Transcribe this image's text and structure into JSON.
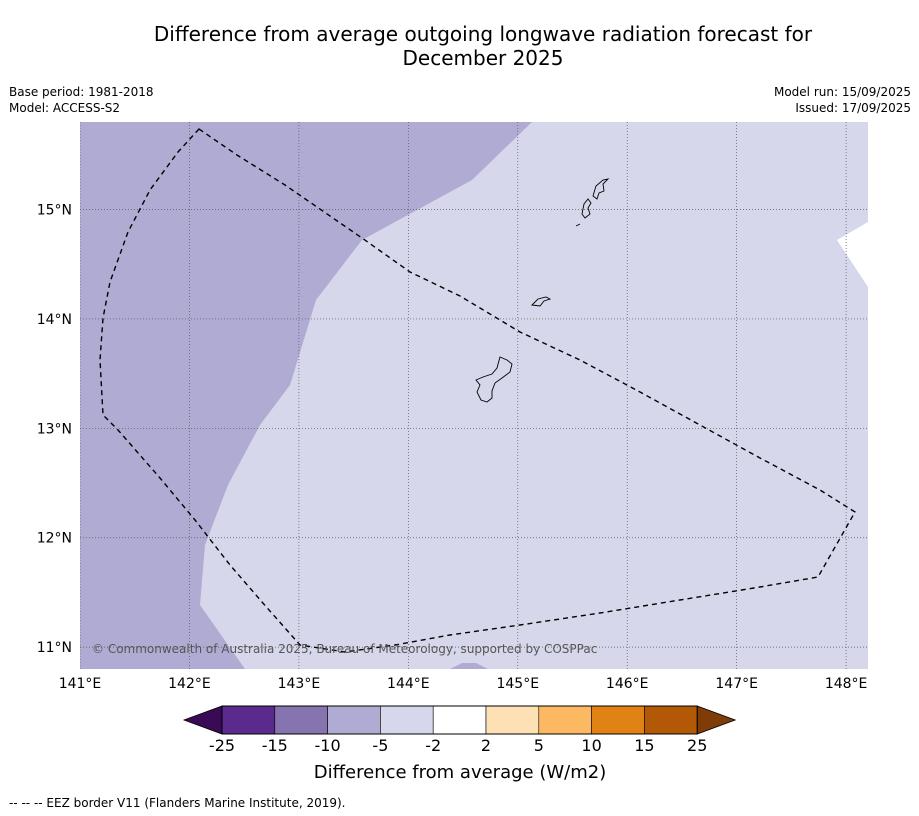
{
  "title_line1": "Difference from average outgoing longwave radiation forecast for",
  "title_line2": "December 2025",
  "base_period": "Base period: 1981-2018",
  "model": "Model: ACCESS-S2",
  "model_run": "Model run: 15/09/2025",
  "issued": "Issued: 17/09/2025",
  "copyright": "© Commonwealth of Australia 2025, Bureau of Meteorology, supported by COSPPac",
  "footer": "--  --  -- EEZ border V11 (Flanders Marine Institute, 2019).",
  "map": {
    "lon_range": [
      141.0,
      148.2
    ],
    "lat_range": [
      10.8,
      15.8
    ],
    "lon_ticks": [
      141,
      142,
      143,
      144,
      145,
      146,
      147,
      148
    ],
    "lon_tick_labels": [
      "141°E",
      "142°E",
      "143°E",
      "144°E",
      "145°E",
      "146°E",
      "147°E",
      "148°E"
    ],
    "lat_ticks": [
      11,
      12,
      13,
      14,
      15
    ],
    "lat_tick_labels": [
      "11°N",
      "12°N",
      "13°N",
      "14°N",
      "15°N"
    ],
    "grid": "dotted",
    "colors": {
      "band_minus10_minus5": "#b0abd2",
      "band_minus5_minus2": "#d6d7ea",
      "band_minus2_2": "#ffffff"
    }
  },
  "colorbar": {
    "boundaries": [
      "-25",
      "-15",
      "-10",
      "-5",
      "-2",
      "2",
      "5",
      "10",
      "15",
      "25"
    ],
    "colors": [
      "#5a2a8c",
      "#8574b0",
      "#b0abd2",
      "#d6d7ea",
      "#ffffff",
      "#fde1b5",
      "#fdb863",
      "#e08214",
      "#b35806"
    ],
    "under_color": "#3b0a57",
    "over_color": "#7f3b08",
    "label": "Difference from average (W/m2)"
  }
}
